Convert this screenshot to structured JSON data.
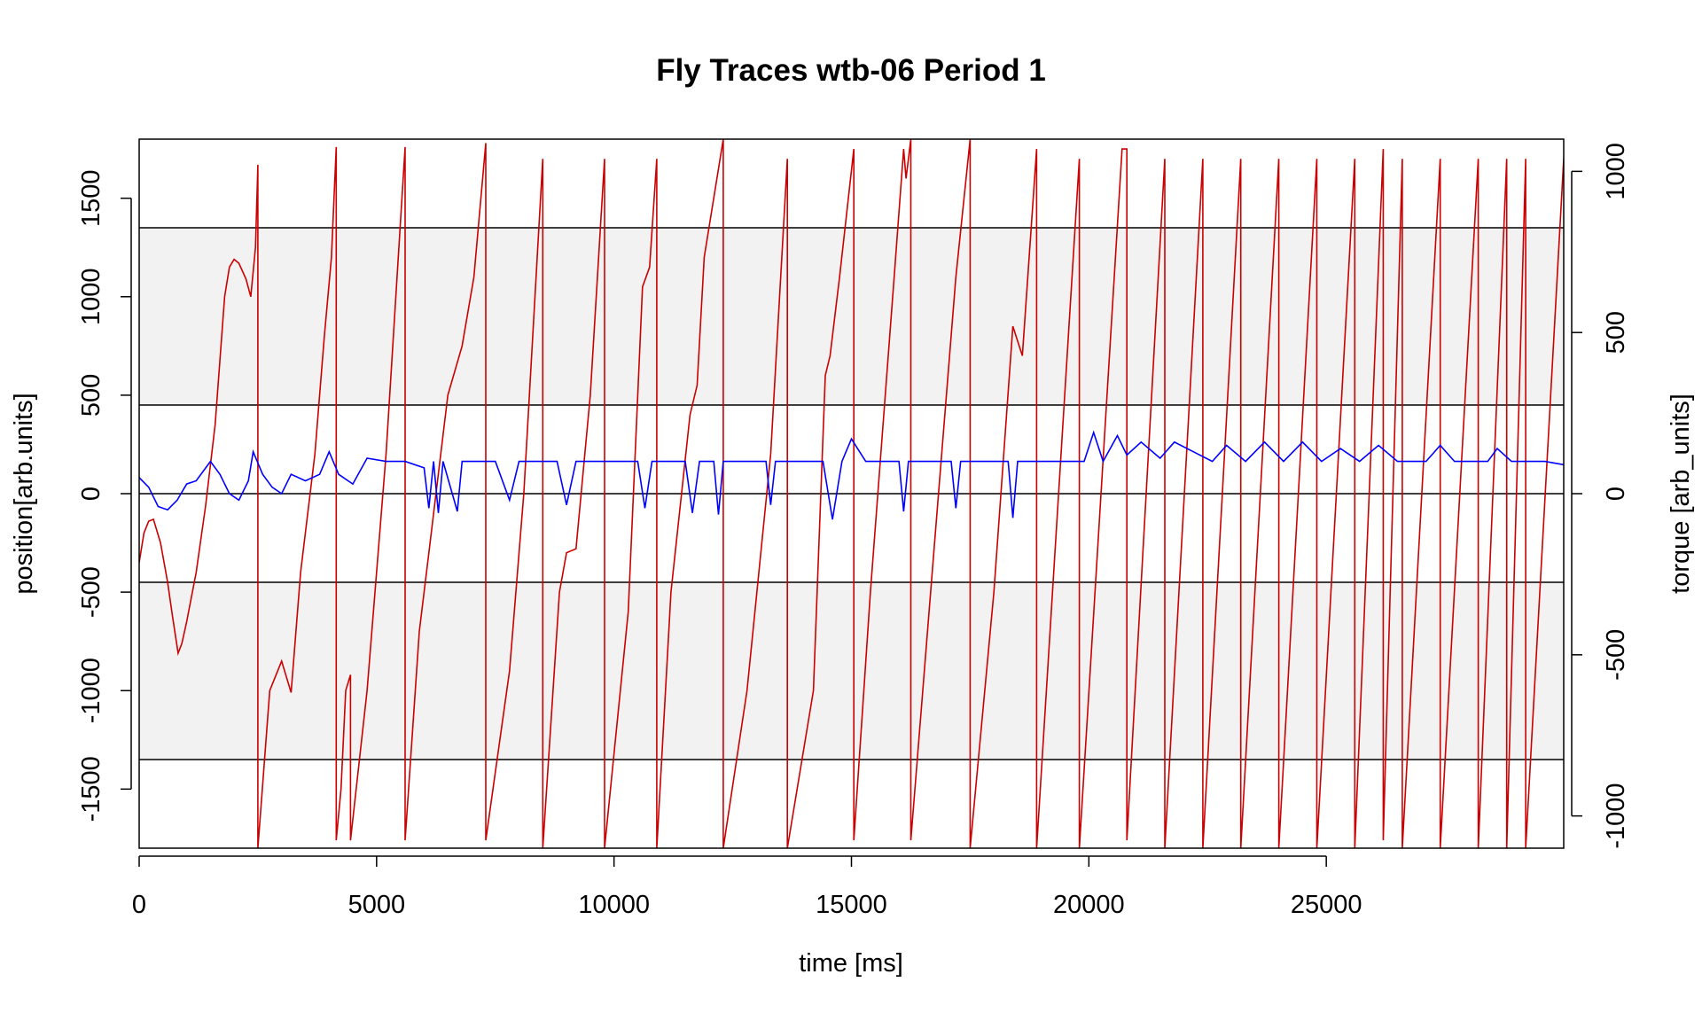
{
  "chart_data": {
    "type": "line",
    "title": "Fly Traces wtb-06 Period 1",
    "xlabel": "time [ms]",
    "ylabel": "position[arb.units]",
    "y2label": "torque [arb_units]",
    "xlim": [
      0,
      30000
    ],
    "ylim": [
      -1800,
      1800
    ],
    "y2lim": [
      -1100,
      1100
    ],
    "x_ticks": [
      0,
      5000,
      10000,
      15000,
      20000,
      25000
    ],
    "y_ticks": [
      -1500,
      -1000,
      -500,
      0,
      500,
      1000,
      1500
    ],
    "y2_ticks": [
      -1000,
      -500,
      0,
      500,
      1000
    ],
    "x_tick_labels": [
      "0",
      "5000",
      "10000",
      "15000",
      "20000",
      "25000"
    ],
    "y_tick_labels": [
      "-1500",
      "-1000",
      "-500",
      "0",
      "500",
      "1000",
      "1500"
    ],
    "y2_tick_labels": [
      "-1000",
      "-500",
      "0",
      "500",
      "1000"
    ],
    "shaded_bands": [
      [
        450,
        1350
      ],
      [
        -1350,
        -450
      ]
    ],
    "horizontal_lines": [
      1350,
      450,
      0,
      -450,
      -1350
    ],
    "colors": {
      "position": "#cc0000",
      "torque": "#0000ff",
      "band": "#f2f2f2"
    },
    "series": [
      {
        "axis": "left",
        "color": "#cc0000",
        "points": [
          [
            0,
            -350
          ],
          [
            100,
            -200
          ],
          [
            200,
            -140
          ],
          [
            300,
            -130
          ],
          [
            450,
            -250
          ],
          [
            600,
            -450
          ],
          [
            700,
            -620
          ],
          [
            800,
            -780
          ],
          [
            820,
            -810
          ],
          [
            900,
            -760
          ],
          [
            1000,
            -650
          ],
          [
            1200,
            -400
          ],
          [
            1400,
            -60
          ],
          [
            1600,
            350
          ],
          [
            1800,
            1000
          ],
          [
            1900,
            1150
          ],
          [
            2000,
            1190
          ],
          [
            2100,
            1170
          ],
          [
            2250,
            1090
          ],
          [
            2350,
            1000
          ],
          [
            2450,
            1250
          ],
          [
            2500,
            1670
          ],
          [
            2500,
            -1800
          ],
          [
            2750,
            -1000
          ],
          [
            3000,
            -850
          ],
          [
            3200,
            -1010
          ],
          [
            3400,
            -400
          ],
          [
            3700,
            200
          ],
          [
            3900,
            800
          ],
          [
            4050,
            1200
          ],
          [
            4150,
            1760
          ],
          [
            4150,
            -1760
          ],
          [
            4250,
            -1500
          ],
          [
            4350,
            -1000
          ],
          [
            4450,
            -920
          ],
          [
            4450,
            -1760
          ],
          [
            4800,
            -1000
          ],
          [
            5200,
            200
          ],
          [
            5600,
            1760
          ],
          [
            5600,
            -1760
          ],
          [
            5900,
            -700
          ],
          [
            6100,
            -300
          ],
          [
            6500,
            500
          ],
          [
            6800,
            750
          ],
          [
            7050,
            1100
          ],
          [
            7300,
            1780
          ],
          [
            7300,
            -1760
          ],
          [
            7800,
            -900
          ],
          [
            8100,
            0
          ],
          [
            8500,
            1700
          ],
          [
            8500,
            -1800
          ],
          [
            8850,
            -500
          ],
          [
            9000,
            -300
          ],
          [
            9200,
            -280
          ],
          [
            9500,
            500
          ],
          [
            9800,
            1700
          ],
          [
            9800,
            -1800
          ],
          [
            10300,
            -600
          ],
          [
            10600,
            1050
          ],
          [
            10750,
            1150
          ],
          [
            10900,
            1700
          ],
          [
            10900,
            -1800
          ],
          [
            11200,
            -500
          ],
          [
            11600,
            400
          ],
          [
            11750,
            550
          ],
          [
            11900,
            1200
          ],
          [
            12300,
            1800
          ],
          [
            12300,
            -1800
          ],
          [
            12800,
            -1000
          ],
          [
            13300,
            200
          ],
          [
            13650,
            1700
          ],
          [
            13650,
            -1800
          ],
          [
            14200,
            -1000
          ],
          [
            14450,
            600
          ],
          [
            14550,
            700
          ],
          [
            14750,
            1100
          ],
          [
            15050,
            1750
          ],
          [
            15050,
            -1760
          ],
          [
            15400,
            -500
          ],
          [
            15900,
            1100
          ],
          [
            16100,
            1750
          ],
          [
            16150,
            1600
          ],
          [
            16250,
            1800
          ],
          [
            16250,
            -1760
          ],
          [
            16700,
            -400
          ],
          [
            17200,
            1100
          ],
          [
            17500,
            1800
          ],
          [
            17500,
            -1800
          ],
          [
            18000,
            -500
          ],
          [
            18400,
            850
          ],
          [
            18600,
            700
          ],
          [
            18900,
            1750
          ],
          [
            18900,
            -1800
          ],
          [
            19800,
            1700
          ],
          [
            19800,
            -1800
          ],
          [
            20700,
            1750
          ],
          [
            20800,
            1750
          ],
          [
            20800,
            -1760
          ],
          [
            21600,
            1700
          ],
          [
            21600,
            -1800
          ],
          [
            22400,
            1700
          ],
          [
            22400,
            -1800
          ],
          [
            23200,
            1700
          ],
          [
            23200,
            -1800
          ],
          [
            24000,
            1700
          ],
          [
            24000,
            -1800
          ],
          [
            24800,
            1700
          ],
          [
            24800,
            -1800
          ],
          [
            25600,
            1700
          ],
          [
            25600,
            -1800
          ],
          [
            26200,
            1750
          ],
          [
            26200,
            -1760
          ],
          [
            26600,
            1700
          ],
          [
            26600,
            -1800
          ],
          [
            27400,
            1700
          ],
          [
            27400,
            -1800
          ],
          [
            28200,
            1700
          ],
          [
            28200,
            -1800
          ],
          [
            28800,
            1700
          ],
          [
            28800,
            -1800
          ],
          [
            29200,
            1700
          ],
          [
            29200,
            -1800
          ],
          [
            30000,
            1700
          ]
        ]
      },
      {
        "axis": "right",
        "color": "#0000ff",
        "points": [
          [
            0,
            50
          ],
          [
            200,
            20
          ],
          [
            400,
            -40
          ],
          [
            600,
            -50
          ],
          [
            800,
            -20
          ],
          [
            1000,
            30
          ],
          [
            1200,
            40
          ],
          [
            1500,
            100
          ],
          [
            1700,
            60
          ],
          [
            1900,
            0
          ],
          [
            2100,
            -20
          ],
          [
            2300,
            40
          ],
          [
            2400,
            130
          ],
          [
            2600,
            60
          ],
          [
            2800,
            20
          ],
          [
            3000,
            0
          ],
          [
            3200,
            60
          ],
          [
            3500,
            40
          ],
          [
            3800,
            60
          ],
          [
            4000,
            130
          ],
          [
            4200,
            60
          ],
          [
            4500,
            30
          ],
          [
            4800,
            110
          ],
          [
            5200,
            100
          ],
          [
            5600,
            100
          ],
          [
            6000,
            80
          ],
          [
            6100,
            -45
          ],
          [
            6200,
            100
          ],
          [
            6300,
            -60
          ],
          [
            6400,
            100
          ],
          [
            6700,
            -55
          ],
          [
            6800,
            100
          ],
          [
            7500,
            100
          ],
          [
            7800,
            -20
          ],
          [
            8000,
            100
          ],
          [
            8800,
            100
          ],
          [
            9000,
            -35
          ],
          [
            9200,
            100
          ],
          [
            10500,
            100
          ],
          [
            10650,
            -45
          ],
          [
            10800,
            100
          ],
          [
            11500,
            100
          ],
          [
            11650,
            -60
          ],
          [
            11800,
            100
          ],
          [
            12100,
            100
          ],
          [
            12200,
            -65
          ],
          [
            12300,
            100
          ],
          [
            13200,
            100
          ],
          [
            13300,
            -35
          ],
          [
            13400,
            100
          ],
          [
            14400,
            100
          ],
          [
            14600,
            -80
          ],
          [
            14800,
            100
          ],
          [
            15000,
            170
          ],
          [
            15300,
            100
          ],
          [
            16000,
            100
          ],
          [
            16100,
            -55
          ],
          [
            16200,
            100
          ],
          [
            17100,
            100
          ],
          [
            17200,
            -45
          ],
          [
            17300,
            100
          ],
          [
            18300,
            100
          ],
          [
            18400,
            -75
          ],
          [
            18500,
            100
          ],
          [
            19900,
            100
          ],
          [
            20100,
            190
          ],
          [
            20300,
            100
          ],
          [
            20600,
            180
          ],
          [
            20800,
            120
          ],
          [
            21100,
            160
          ],
          [
            21500,
            110
          ],
          [
            21800,
            160
          ],
          [
            22200,
            130
          ],
          [
            22600,
            100
          ],
          [
            22900,
            150
          ],
          [
            23300,
            100
          ],
          [
            23700,
            160
          ],
          [
            24100,
            100
          ],
          [
            24500,
            160
          ],
          [
            24900,
            100
          ],
          [
            25300,
            140
          ],
          [
            25700,
            100
          ],
          [
            26100,
            150
          ],
          [
            26500,
            100
          ],
          [
            27100,
            100
          ],
          [
            27400,
            150
          ],
          [
            27700,
            100
          ],
          [
            28400,
            100
          ],
          [
            28600,
            140
          ],
          [
            28900,
            100
          ],
          [
            29600,
            100
          ],
          [
            30000,
            90
          ]
        ]
      }
    ]
  }
}
